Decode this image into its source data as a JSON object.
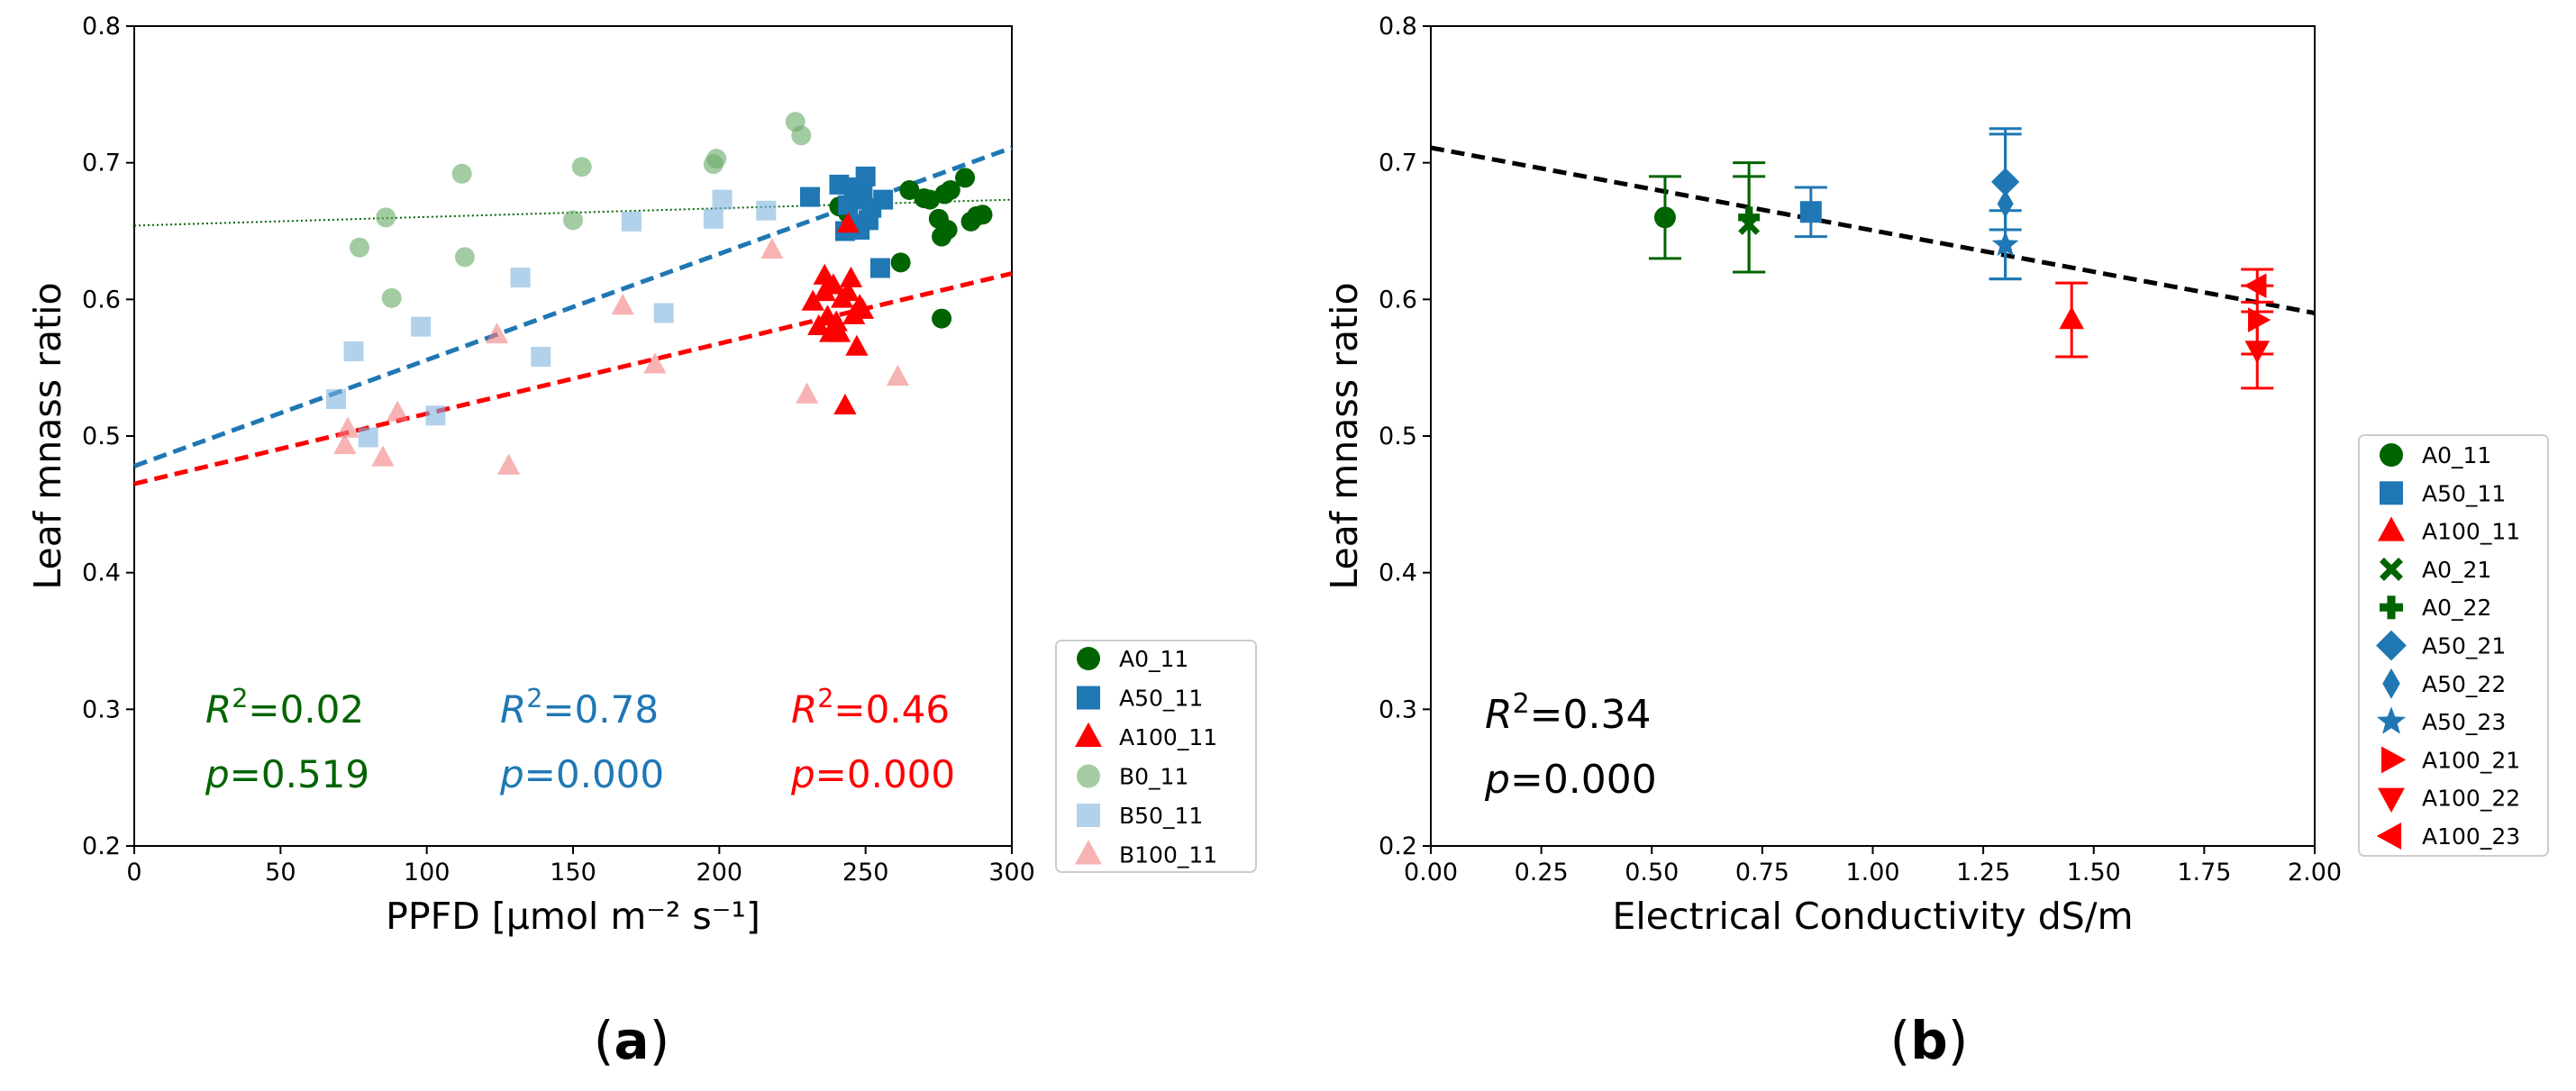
{
  "chart_data": [
    {
      "type": "scatter",
      "panel_label_parts": [
        "(",
        "a",
        ")"
      ],
      "xlabel": "PPFD [µmol m⁻² s⁻¹]",
      "ylabel": "Leaf mnass ratio",
      "xlim": [
        0,
        300
      ],
      "ylim": [
        0.2,
        0.8
      ],
      "x_ticks": [
        0,
        50,
        100,
        150,
        200,
        250,
        300
      ],
      "y_ticks": [
        0.2,
        0.3,
        0.4,
        0.5,
        0.6,
        0.7,
        0.8
      ],
      "x_tick_labels": [
        "0",
        "50",
        "100",
        "150",
        "200",
        "250",
        "300"
      ],
      "y_tick_labels": [
        "0.2",
        "0.3",
        "0.4",
        "0.5",
        "0.6",
        "0.7",
        "0.8"
      ],
      "grid": false,
      "legend_position": "outside-right-bottom",
      "series": [
        {
          "name": "A0_11",
          "marker": "circle",
          "color": "#006400",
          "alpha": 1,
          "x": [
            241,
            244,
            262,
            265,
            270,
            272,
            275,
            276,
            277,
            278,
            279,
            284,
            286,
            288,
            290,
            276
          ],
          "y": [
            0.668,
            0.663,
            0.627,
            0.68,
            0.674,
            0.673,
            0.659,
            0.646,
            0.677,
            0.651,
            0.68,
            0.689,
            0.657,
            0.661,
            0.662,
            0.586
          ]
        },
        {
          "name": "A50_11",
          "marker": "square",
          "color": "#1f77b4",
          "alpha": 1,
          "x": [
            231,
            241,
            243,
            244,
            246,
            247,
            248,
            248,
            249,
            250,
            251,
            252,
            255,
            256
          ],
          "y": [
            0.675,
            0.684,
            0.65,
            0.669,
            0.682,
            0.655,
            0.673,
            0.651,
            0.676,
            0.69,
            0.658,
            0.667,
            0.623,
            0.673
          ]
        },
        {
          "name": "A100_11",
          "marker": "triangle-up",
          "color": "#ff0000",
          "alpha": 1,
          "x": [
            232,
            234,
            236,
            237,
            238,
            239,
            240,
            241,
            242,
            243,
            244,
            245,
            246,
            247,
            248,
            249,
            236,
            244
          ],
          "y": [
            0.598,
            0.58,
            0.617,
            0.587,
            0.575,
            0.61,
            0.583,
            0.575,
            0.6,
            0.522,
            0.605,
            0.615,
            0.588,
            0.565,
            0.595,
            0.592,
            0.605,
            0.655
          ]
        },
        {
          "name": "B0_11",
          "marker": "circle",
          "color": "#66aa66",
          "alpha": 0.6,
          "x": [
            77,
            86,
            88,
            112,
            113,
            150,
            153,
            198,
            199,
            226,
            228
          ],
          "y": [
            0.638,
            0.66,
            0.601,
            0.692,
            0.631,
            0.658,
            0.697,
            0.699,
            0.703,
            0.73,
            0.72
          ]
        },
        {
          "name": "B50_11",
          "marker": "square",
          "color": "#7fb3dd",
          "alpha": 0.6,
          "x": [
            69,
            75,
            80,
            98,
            103,
            132,
            139,
            170,
            181,
            198,
            201,
            216
          ],
          "y": [
            0.527,
            0.562,
            0.499,
            0.58,
            0.515,
            0.616,
            0.558,
            0.657,
            0.59,
            0.659,
            0.673,
            0.665
          ]
        },
        {
          "name": "B100_11",
          "marker": "triangle-up",
          "color": "#f28080",
          "alpha": 0.6,
          "x": [
            72,
            73,
            85,
            90,
            124,
            128,
            167,
            178,
            218,
            230,
            261
          ],
          "y": [
            0.493,
            0.505,
            0.484,
            0.517,
            0.574,
            0.478,
            0.595,
            0.552,
            0.636,
            0.53,
            0.543
          ]
        }
      ],
      "fit_lines": [
        {
          "color": "#006400",
          "style": "dotted",
          "x": [
            0,
            300
          ],
          "y": [
            0.654,
            0.673
          ]
        },
        {
          "color": "#1f77b4",
          "style": "dashed",
          "x": [
            0,
            300
          ],
          "y": [
            0.478,
            0.711
          ]
        },
        {
          "color": "#ff0000",
          "style": "dashed",
          "x": [
            0,
            300
          ],
          "y": [
            0.465,
            0.619
          ]
        }
      ],
      "annotations": [
        {
          "r2": "0.02",
          "p": "0.519",
          "color": "#006400"
        },
        {
          "r2": "0.78",
          "p": "0.000",
          "color": "#1f77b4"
        },
        {
          "r2": "0.46",
          "p": "0.000",
          "color": "#ff0000"
        }
      ]
    },
    {
      "type": "scatter",
      "panel_label_parts": [
        "(",
        "b",
        ")"
      ],
      "xlabel": "Electrical Conductivity dS/m",
      "ylabel": "Leaf mnass ratio",
      "xlim": [
        0.0,
        2.0
      ],
      "ylim": [
        0.2,
        0.8
      ],
      "x_ticks": [
        0.0,
        0.25,
        0.5,
        0.75,
        1.0,
        1.25,
        1.5,
        1.75,
        2.0
      ],
      "y_ticks": [
        0.2,
        0.3,
        0.4,
        0.5,
        0.6,
        0.7,
        0.8
      ],
      "x_tick_labels": [
        "0.00",
        "0.25",
        "0.50",
        "0.75",
        "1.00",
        "1.25",
        "1.50",
        "1.75",
        "2.00"
      ],
      "y_tick_labels": [
        "0.2",
        "0.3",
        "0.4",
        "0.5",
        "0.6",
        "0.7",
        "0.8"
      ],
      "grid": false,
      "legend_position": "outside-right",
      "series": [
        {
          "name": "A0_11",
          "marker": "circle",
          "color": "#006400",
          "x": [
            0.53
          ],
          "y": [
            0.66
          ],
          "err": [
            0.03
          ]
        },
        {
          "name": "A50_11",
          "marker": "square",
          "color": "#1f77b4",
          "x": [
            0.86
          ],
          "y": [
            0.664
          ],
          "err": [
            0.018
          ]
        },
        {
          "name": "A100_11",
          "marker": "triangle-up",
          "color": "#ff0000",
          "x": [
            1.45
          ],
          "y": [
            0.585
          ],
          "err": [
            0.027
          ]
        },
        {
          "name": "A0_21",
          "marker": "x-cross",
          "color": "#006400",
          "x": [
            0.72
          ],
          "y": [
            0.655
          ],
          "err": [
            0.035
          ]
        },
        {
          "name": "A0_22",
          "marker": "plus",
          "color": "#006400",
          "x": [
            0.72
          ],
          "y": [
            0.66
          ],
          "err": [
            0.04
          ]
        },
        {
          "name": "A50_21",
          "marker": "diamond",
          "color": "#1f77b4",
          "x": [
            1.3
          ],
          "y": [
            0.686
          ],
          "err": [
            0.035
          ]
        },
        {
          "name": "A50_22",
          "marker": "thin-diamond",
          "color": "#1f77b4",
          "x": [
            1.3
          ],
          "y": [
            0.67
          ],
          "err": [
            0.055
          ]
        },
        {
          "name": "A50_23",
          "marker": "star",
          "color": "#1f77b4",
          "x": [
            1.3
          ],
          "y": [
            0.64
          ],
          "err": [
            0.025
          ]
        },
        {
          "name": "A100_21",
          "marker": "triangle-right",
          "color": "#ff0000",
          "x": [
            1.87
          ],
          "y": [
            0.585
          ],
          "err": [
            0.025
          ]
        },
        {
          "name": "A100_22",
          "marker": "triangle-down",
          "color": "#ff0000",
          "x": [
            1.87
          ],
          "y": [
            0.563
          ],
          "err": [
            0.028
          ]
        },
        {
          "name": "A100_23",
          "marker": "triangle-left",
          "color": "#ff0000",
          "x": [
            1.87
          ],
          "y": [
            0.61
          ],
          "err": [
            0.012
          ]
        }
      ],
      "fit_lines": [
        {
          "color": "#000000",
          "style": "dashed",
          "x": [
            0.0,
            2.0
          ],
          "y": [
            0.711,
            0.59
          ]
        }
      ],
      "annotations": [
        {
          "r2": "0.34",
          "p": "0.000",
          "color": "#000000"
        }
      ]
    }
  ]
}
